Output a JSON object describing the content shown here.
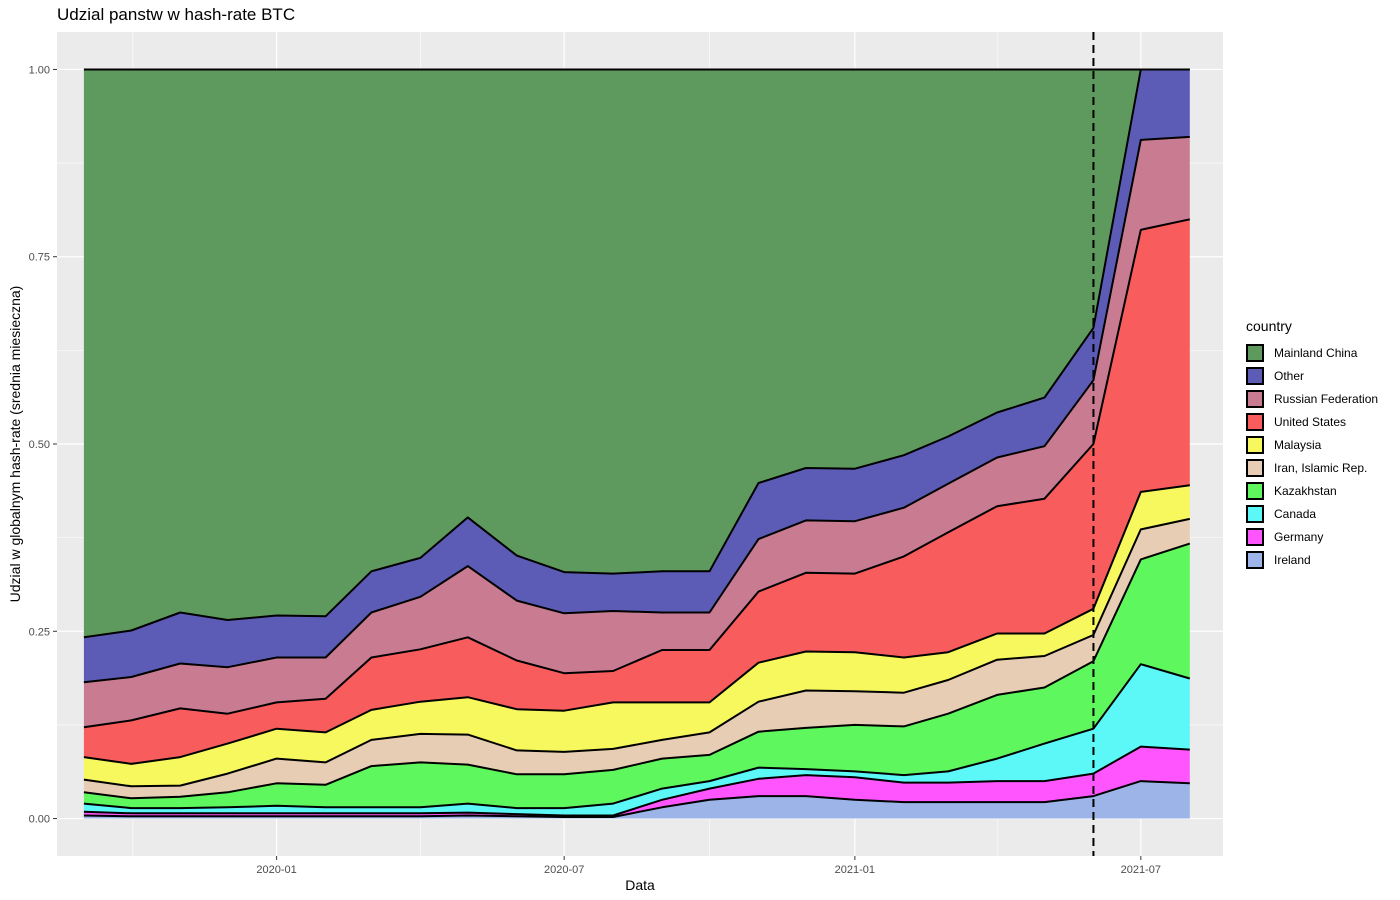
{
  "chart_data": {
    "type": "area",
    "stacked": true,
    "title": "Udzial panstw w hash-rate BTC",
    "xlabel": "Data",
    "ylabel": "Udzial w globalnym hash-rate (srednia miesieczna)",
    "x_ticks": [
      "2020-01",
      "2020-07",
      "2021-01",
      "2021-07"
    ],
    "y_ticks": [
      "0.00",
      "0.25",
      "0.50",
      "0.75",
      "1.00"
    ],
    "xlim": [
      "2019-08-15",
      "2021-08-22"
    ],
    "ylim": [
      -0.05,
      1.05
    ],
    "vline": "2021-06-01",
    "legend_title": "country",
    "legend_position": "right",
    "grid": true,
    "x": [
      "2019-09-01",
      "2019-10-01",
      "2019-11-01",
      "2019-12-01",
      "2020-01-01",
      "2020-02-01",
      "2020-03-01",
      "2020-04-01",
      "2020-05-01",
      "2020-06-01",
      "2020-07-01",
      "2020-08-01",
      "2020-09-01",
      "2020-10-01",
      "2020-11-01",
      "2020-12-01",
      "2021-01-01",
      "2021-02-01",
      "2021-03-01",
      "2021-04-01",
      "2021-05-01",
      "2021-06-01",
      "2021-07-01",
      "2021-08-01"
    ],
    "series": [
      {
        "name": "Ireland",
        "color": "#9CB4E8",
        "values": [
          0.004,
          0.003,
          0.003,
          0.003,
          0.003,
          0.003,
          0.003,
          0.003,
          0.004,
          0.003,
          0.002,
          0.002,
          0.015,
          0.025,
          0.03,
          0.03,
          0.025,
          0.022,
          0.022,
          0.022,
          0.022,
          0.03,
          0.05,
          0.047
        ]
      },
      {
        "name": "Germany",
        "color": "#FF55FF",
        "values": [
          0.005,
          0.004,
          0.004,
          0.004,
          0.004,
          0.004,
          0.004,
          0.004,
          0.004,
          0.003,
          0.002,
          0.002,
          0.01,
          0.015,
          0.023,
          0.028,
          0.03,
          0.026,
          0.026,
          0.028,
          0.028,
          0.03,
          0.046,
          0.045
        ]
      },
      {
        "name": "Canada",
        "color": "#5CF7F7",
        "values": [
          0.011,
          0.007,
          0.007,
          0.008,
          0.01,
          0.008,
          0.008,
          0.008,
          0.012,
          0.008,
          0.01,
          0.016,
          0.015,
          0.01,
          0.015,
          0.008,
          0.008,
          0.01,
          0.015,
          0.03,
          0.05,
          0.06,
          0.11,
          0.095
        ]
      },
      {
        "name": "Kazakhstan",
        "color": "#5EF75E",
        "values": [
          0.015,
          0.013,
          0.015,
          0.02,
          0.03,
          0.03,
          0.055,
          0.06,
          0.052,
          0.045,
          0.045,
          0.045,
          0.04,
          0.035,
          0.048,
          0.055,
          0.062,
          0.065,
          0.077,
          0.085,
          0.075,
          0.09,
          0.14,
          0.18
        ]
      },
      {
        "name": "Iran, Islamic Rep.",
        "color": "#E6CDB3",
        "values": [
          0.017,
          0.016,
          0.015,
          0.025,
          0.033,
          0.03,
          0.035,
          0.038,
          0.04,
          0.032,
          0.03,
          0.028,
          0.025,
          0.03,
          0.04,
          0.05,
          0.045,
          0.045,
          0.045,
          0.047,
          0.042,
          0.035,
          0.04,
          0.033
        ]
      },
      {
        "name": "Malaysia",
        "color": "#F7F75E",
        "values": [
          0.03,
          0.03,
          0.038,
          0.04,
          0.04,
          0.04,
          0.04,
          0.043,
          0.05,
          0.055,
          0.055,
          0.062,
          0.05,
          0.04,
          0.052,
          0.052,
          0.052,
          0.047,
          0.037,
          0.035,
          0.03,
          0.035,
          0.05,
          0.045
        ]
      },
      {
        "name": "United States",
        "color": "#F85C5C",
        "values": [
          0.04,
          0.058,
          0.065,
          0.04,
          0.035,
          0.045,
          0.07,
          0.07,
          0.08,
          0.065,
          0.05,
          0.042,
          0.07,
          0.07,
          0.095,
          0.105,
          0.105,
          0.135,
          0.16,
          0.17,
          0.18,
          0.22,
          0.35,
          0.355
        ]
      },
      {
        "name": "Russian Federation",
        "color": "#C97B92",
        "values": [
          0.06,
          0.058,
          0.06,
          0.062,
          0.06,
          0.055,
          0.06,
          0.07,
          0.095,
          0.08,
          0.08,
          0.08,
          0.05,
          0.05,
          0.07,
          0.07,
          0.07,
          0.065,
          0.065,
          0.065,
          0.07,
          0.085,
          0.12,
          0.11
        ]
      },
      {
        "name": "Other",
        "color": "#5C5CB7",
        "values": [
          0.06,
          0.062,
          0.068,
          0.063,
          0.056,
          0.055,
          0.055,
          0.052,
          0.065,
          0.06,
          0.055,
          0.05,
          0.055,
          0.055,
          0.075,
          0.07,
          0.07,
          0.07,
          0.063,
          0.06,
          0.065,
          0.07,
          0.094,
          0.09
        ]
      },
      {
        "name": "Mainland China",
        "color": "#5E9A5E",
        "values": [
          0.758,
          0.749,
          0.725,
          0.735,
          0.729,
          0.73,
          0.67,
          0.652,
          0.598,
          0.649,
          0.671,
          0.673,
          0.67,
          0.67,
          0.552,
          0.532,
          0.533,
          0.515,
          0.49,
          0.458,
          0.438,
          0.345,
          0.0,
          0.0
        ]
      }
    ]
  }
}
